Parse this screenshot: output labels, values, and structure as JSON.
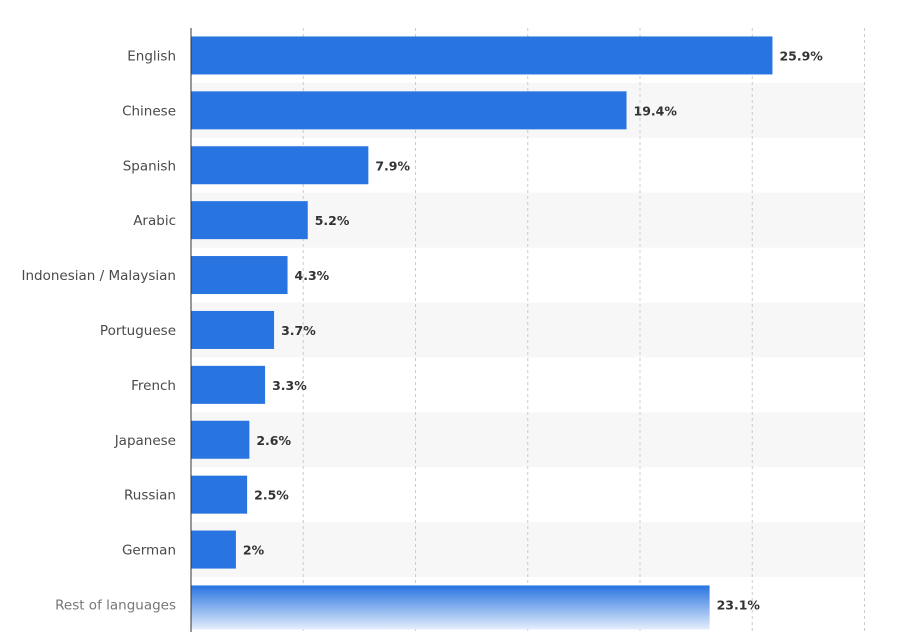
{
  "chart_data": {
    "type": "bar",
    "orientation": "horizontal",
    "categories": [
      "English",
      "Chinese",
      "Spanish",
      "Arabic",
      "Indonesian / Malaysian",
      "Portuguese",
      "French",
      "Japanese",
      "Russian",
      "German",
      "Rest of languages"
    ],
    "values": [
      25.9,
      19.4,
      7.9,
      5.2,
      4.3,
      3.7,
      3.3,
      2.6,
      2.5,
      2,
      23.1
    ],
    "value_labels": [
      "25.9%",
      "19.4%",
      "7.9%",
      "5.2%",
      "4.3%",
      "3.7%",
      "3.3%",
      "2.6%",
      "2.5%",
      "2%",
      "23.1%"
    ],
    "unit": "%",
    "xlim": [
      0,
      30
    ],
    "x_gridlines": [
      5,
      10,
      15,
      20,
      25,
      30
    ],
    "grid": true,
    "legend": "none",
    "title": "",
    "xlabel": "",
    "ylabel": ""
  },
  "colors": {
    "bar": "#2874e0",
    "bar_fade_end": "#e4eefc",
    "band": "#f7f7f7",
    "grid": "#cccccc",
    "axis": "#333333"
  }
}
